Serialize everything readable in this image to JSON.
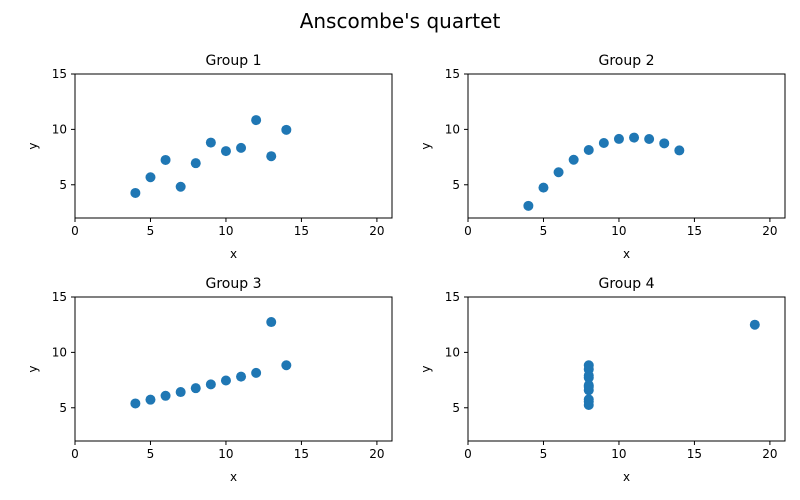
{
  "title": "Anscombe's quartet",
  "colors": {
    "marker": "#1f77b4",
    "axis": "#000000",
    "background": "#ffffff"
  },
  "chart_data": [
    {
      "type": "scatter",
      "title": "Group 1",
      "xlabel": "x",
      "ylabel": "y",
      "xlim": [
        0,
        21
      ],
      "ylim": [
        2,
        15
      ],
      "xticks": [
        0,
        5,
        10,
        15,
        20
      ],
      "yticks": [
        5,
        10,
        15
      ],
      "grid": false,
      "x": [
        10,
        8,
        13,
        9,
        11,
        14,
        6,
        4,
        12,
        7,
        5
      ],
      "y": [
        8.04,
        6.95,
        7.58,
        8.81,
        8.33,
        9.96,
        7.24,
        4.26,
        10.84,
        4.82,
        5.68
      ]
    },
    {
      "type": "scatter",
      "title": "Group 2",
      "xlabel": "x",
      "ylabel": "y",
      "xlim": [
        0,
        21
      ],
      "ylim": [
        2,
        15
      ],
      "xticks": [
        0,
        5,
        10,
        15,
        20
      ],
      "yticks": [
        5,
        10,
        15
      ],
      "grid": false,
      "x": [
        10,
        8,
        13,
        9,
        11,
        14,
        6,
        4,
        12,
        7,
        5
      ],
      "y": [
        9.14,
        8.14,
        8.74,
        8.77,
        9.26,
        8.1,
        6.13,
        3.1,
        9.13,
        7.26,
        4.74
      ]
    },
    {
      "type": "scatter",
      "title": "Group 3",
      "xlabel": "x",
      "ylabel": "y",
      "xlim": [
        0,
        21
      ],
      "ylim": [
        2,
        15
      ],
      "xticks": [
        0,
        5,
        10,
        15,
        20
      ],
      "yticks": [
        5,
        10,
        15
      ],
      "grid": false,
      "x": [
        10,
        8,
        13,
        9,
        11,
        14,
        6,
        4,
        12,
        7,
        5
      ],
      "y": [
        7.46,
        6.77,
        12.74,
        7.11,
        7.81,
        8.84,
        6.08,
        5.39,
        8.15,
        6.42,
        5.73
      ]
    },
    {
      "type": "scatter",
      "title": "Group 4",
      "xlabel": "x",
      "ylabel": "y",
      "xlim": [
        0,
        21
      ],
      "ylim": [
        2,
        15
      ],
      "xticks": [
        0,
        5,
        10,
        15,
        20
      ],
      "yticks": [
        5,
        10,
        15
      ],
      "grid": false,
      "x": [
        8,
        8,
        8,
        8,
        8,
        8,
        8,
        19,
        8,
        8,
        8
      ],
      "y": [
        6.58,
        5.76,
        7.71,
        8.84,
        8.47,
        7.04,
        5.25,
        12.5,
        5.56,
        7.91,
        6.89
      ]
    }
  ]
}
